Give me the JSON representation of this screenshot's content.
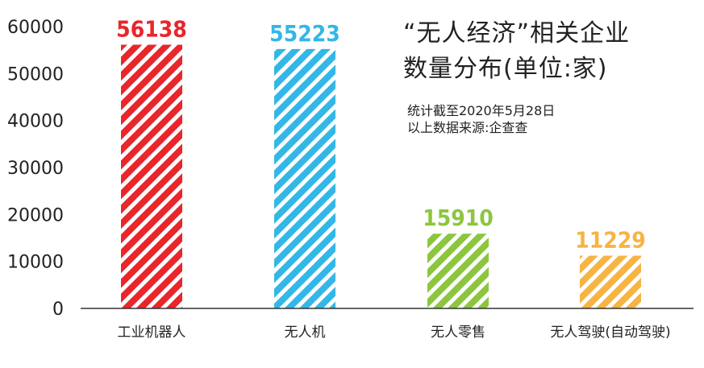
{
  "chart_data": {
    "type": "bar",
    "title_lines": [
      "“无人经济”相关企业",
      "数量分布(单位:家)"
    ],
    "notes": [
      "统计截至2020年5月28日",
      "以上数据来源:企查查"
    ],
    "categories": [
      "工业机器人",
      "无人机",
      "无人零售",
      "无人驾驶(自动驾驶)"
    ],
    "values": [
      56138,
      55223,
      15910,
      11229
    ],
    "value_labels": [
      "56138",
      "55223",
      "15910",
      "11229"
    ],
    "bar_colors": [
      "#e8262b",
      "#33b7e6",
      "#8cc63e",
      "#f6b443"
    ],
    "yticks": [
      "0",
      "10000",
      "20000",
      "30000",
      "40000",
      "50000",
      "60000"
    ],
    "ylim": [
      0,
      60000
    ],
    "grid": false,
    "bar_style": "diagonal-stripes"
  }
}
